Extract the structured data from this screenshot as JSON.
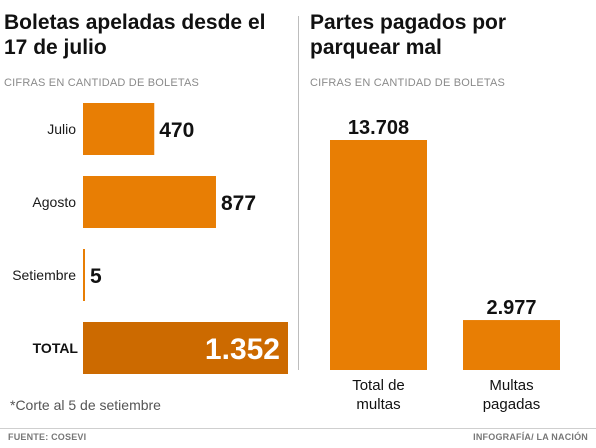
{
  "chart_data": [
    {
      "type": "bar",
      "orientation": "horizontal",
      "title": "Boletas apeladas desde el 17 de julio",
      "subtitle": "CIFRAS EN CANTIDAD DE BOLETAS",
      "categories": [
        "Julio",
        "Agosto",
        "Setiembre"
      ],
      "values": [
        470,
        877,
        5
      ],
      "value_labels": [
        "470",
        "877",
        "5"
      ],
      "total": {
        "label": "TOTAL",
        "value": 1352,
        "value_label": "1.352"
      },
      "bar_color": "#e87e04",
      "total_color": "#cc6a00",
      "note": "*Corte al 5 de setiembre"
    },
    {
      "type": "bar",
      "orientation": "vertical",
      "title": "Partes pagados por parquear mal",
      "subtitle": "CIFRAS EN CANTIDAD DE BOLETAS",
      "categories": [
        [
          "Total de",
          "multas"
        ],
        [
          "Multas",
          "pagadas"
        ]
      ],
      "values": [
        13708,
        2977
      ],
      "value_labels": [
        "13.708",
        "2.977"
      ],
      "bar_color": "#e87e04"
    }
  ],
  "footer": {
    "source": "FUENTE: COSEVI",
    "credit": "INFOGRAFÍA/ LA NACIÓN"
  }
}
